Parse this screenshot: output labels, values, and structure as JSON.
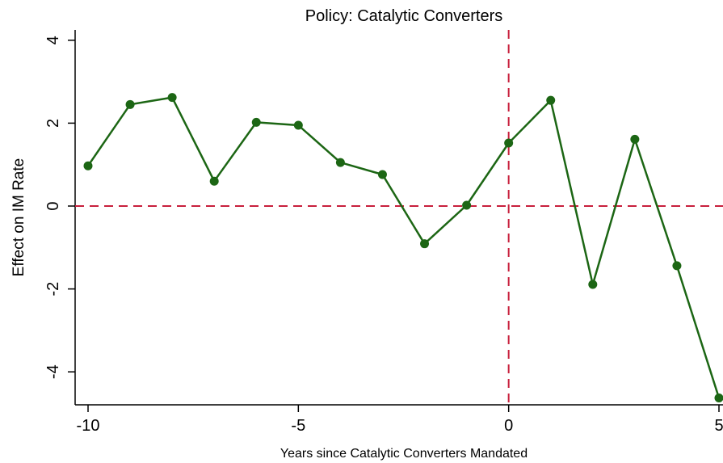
{
  "chart_data": {
    "type": "line",
    "title": "Policy:  Catalytic Converters",
    "xlabel": "Years since Catalytic Converters Mandated",
    "ylabel": "Effect on IM Rate",
    "xlim": [
      -10,
      5
    ],
    "ylim": [
      -4.8,
      4.1
    ],
    "xticks": [
      -10,
      -5,
      0,
      5
    ],
    "xtick_labels": [
      "-10",
      "-5",
      "0",
      "5"
    ],
    "yticks": [
      -4,
      -2,
      0,
      2,
      4
    ],
    "ytick_labels": [
      "-4",
      "-2",
      "0",
      "2",
      "4"
    ],
    "grid": false,
    "reference_lines": [
      {
        "axis": "y",
        "value": 0,
        "style": "dashed",
        "color": "#c8203c"
      },
      {
        "axis": "x",
        "value": 0,
        "style": "dashed",
        "color": "#c8203c"
      }
    ],
    "series": [
      {
        "color": "#1c6614",
        "x": [
          -10,
          -9,
          -8,
          -7,
          -6,
          -5,
          -4,
          -3,
          -2,
          -1,
          0,
          1,
          2,
          3,
          4,
          5
        ],
        "y": [
          0.97,
          2.45,
          2.62,
          0.6,
          2.02,
          1.95,
          1.05,
          0.76,
          -0.91,
          0.02,
          1.52,
          2.55,
          -1.89,
          1.61,
          -1.44,
          -4.63
        ]
      }
    ]
  }
}
